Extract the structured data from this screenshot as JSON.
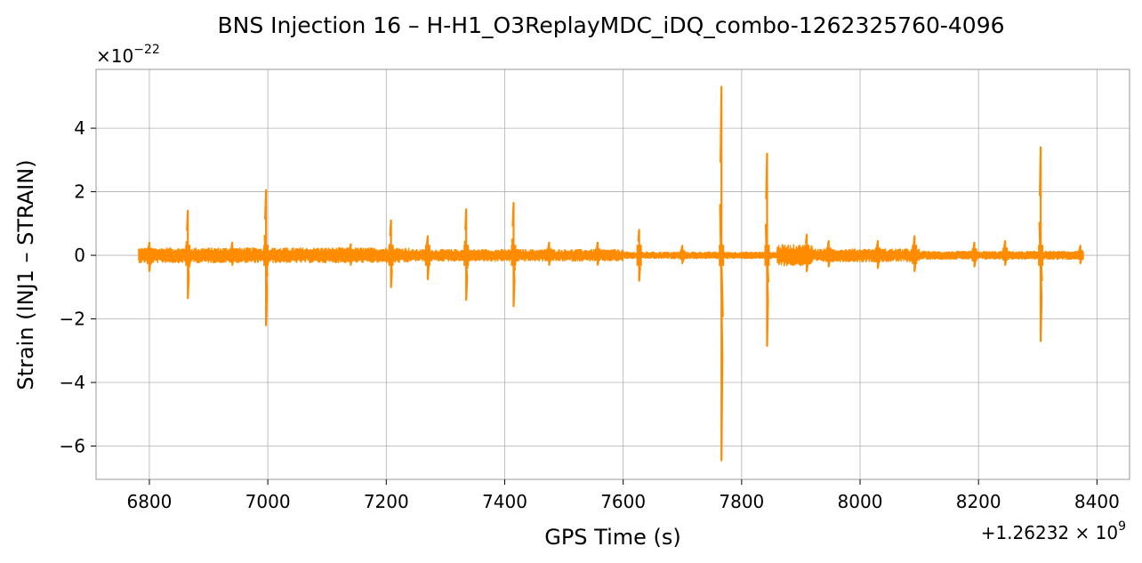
{
  "chart_data": {
    "type": "line",
    "title": "BNS Injection 16 – H-H1_O3ReplayMDC_iDQ_combo-1262325760-4096",
    "xlabel": "GPS Time (s)",
    "ylabel": "Strain (INJ1 – STRAIN)",
    "x_offset_label": "+1.26232 × 10",
    "x_offset_exponent": "9",
    "y_scale_label": "×10",
    "y_scale_exponent": "−22",
    "xlim": [
      6710,
      8455
    ],
    "ylim": [
      -7.05,
      5.85
    ],
    "x_ticks": [
      6800,
      7000,
      7200,
      7400,
      7600,
      7800,
      8000,
      8200,
      8400
    ],
    "x_tick_labels": [
      "6800",
      "7000",
      "7200",
      "7400",
      "7600",
      "7800",
      "8000",
      "8200",
      "8400"
    ],
    "y_ticks": [
      -6,
      -4,
      -2,
      0,
      2,
      4
    ],
    "y_tick_labels": [
      "−6",
      "−4",
      "−2",
      "0",
      "2",
      "4"
    ],
    "grid": true,
    "series": [
      {
        "color": "#ff8c00",
        "x_range": [
          6782,
          8378
        ],
        "noise_amplitude": [
          {
            "from": 6782,
            "to": 7240,
            "amp": 0.25
          },
          {
            "from": 7240,
            "to": 7600,
            "amp": 0.2
          },
          {
            "from": 7600,
            "to": 7860,
            "amp": 0.12
          },
          {
            "from": 7860,
            "to": 7920,
            "amp": 0.35
          },
          {
            "from": 7920,
            "to": 8100,
            "amp": 0.22
          },
          {
            "from": 8100,
            "to": 8378,
            "amp": 0.14
          }
        ],
        "glitches": [
          {
            "x": 6800,
            "max": 0.4,
            "min": -0.5
          },
          {
            "x": 6865,
            "max": 1.4,
            "min": -1.35
          },
          {
            "x": 6940,
            "max": 0.4,
            "min": -0.3
          },
          {
            "x": 6997,
            "max": 2.05,
            "min": -2.2
          },
          {
            "x": 7140,
            "max": 0.35,
            "min": -0.3
          },
          {
            "x": 7208,
            "max": 1.1,
            "min": -1.0
          },
          {
            "x": 7270,
            "max": 0.6,
            "min": -0.75
          },
          {
            "x": 7335,
            "max": 1.45,
            "min": -1.4
          },
          {
            "x": 7415,
            "max": 1.65,
            "min": -1.6
          },
          {
            "x": 7475,
            "max": 0.4,
            "min": -0.3
          },
          {
            "x": 7557,
            "max": 0.4,
            "min": -0.3
          },
          {
            "x": 7627,
            "max": 0.8,
            "min": -0.8
          },
          {
            "x": 7700,
            "max": 0.3,
            "min": -0.25
          },
          {
            "x": 7766,
            "max": 5.3,
            "min": -6.45
          },
          {
            "x": 7843,
            "max": 3.2,
            "min": -2.85
          },
          {
            "x": 7910,
            "max": 0.65,
            "min": -0.5
          },
          {
            "x": 7947,
            "max": 0.45,
            "min": -0.35
          },
          {
            "x": 8030,
            "max": 0.45,
            "min": -0.4
          },
          {
            "x": 8092,
            "max": 0.6,
            "min": -0.5
          },
          {
            "x": 8193,
            "max": 0.4,
            "min": -0.35
          },
          {
            "x": 8245,
            "max": 0.45,
            "min": -0.3
          },
          {
            "x": 8305,
            "max": 3.4,
            "min": -2.7
          },
          {
            "x": 8372,
            "max": 0.3,
            "min": -0.25
          }
        ]
      }
    ]
  }
}
